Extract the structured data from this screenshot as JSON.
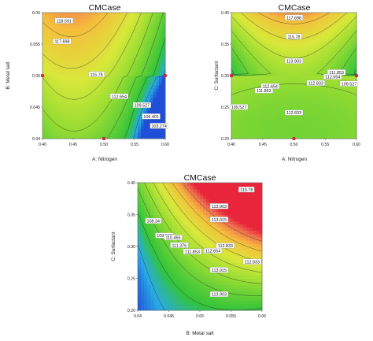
{
  "chart_data": [
    {
      "type": "contour",
      "title": "CMCase",
      "xlabel": "A: Nitrogen",
      "ylabel": "B: Metal salt",
      "xlim": [
        0.4,
        0.6
      ],
      "ylim": [
        0.04,
        0.06
      ],
      "x_ticks": [
        "0.40",
        "0.45",
        "0.50",
        "0.55",
        "0.60"
      ],
      "y_ticks": [
        "0.04",
        "0.045",
        "0.05",
        "0.055",
        "0.06"
      ],
      "design_points": [
        [
          0.4,
          0.05
        ],
        [
          0.5,
          0.04
        ],
        [
          0.6,
          0.05
        ]
      ],
      "contour_labels": [
        {
          "text": "118.591",
          "x": 0.435,
          "y": 0.0587
        },
        {
          "text": "117.698",
          "x": 0.432,
          "y": 0.0554
        },
        {
          "text": "115.78",
          "x": 0.488,
          "y": 0.0502
        },
        {
          "text": "112.654",
          "x": 0.525,
          "y": 0.0467
        },
        {
          "text": "109.527",
          "x": 0.562,
          "y": 0.0453
        },
        {
          "text": "106.401",
          "x": 0.577,
          "y": 0.0435
        },
        {
          "text": "103.274",
          "x": 0.59,
          "y": 0.042
        }
      ],
      "grid": false
    },
    {
      "type": "contour",
      "title": "CMCase",
      "xlabel": "A: Nitrogen",
      "ylabel": "C: Surfactant",
      "xlim": [
        0.4,
        0.6
      ],
      "ylim": [
        0.2,
        0.4
      ],
      "x_ticks": [
        "0.40",
        "0.45",
        "0.50",
        "0.55",
        "0.60"
      ],
      "y_ticks": [
        "0.20",
        "0.25",
        "0.30",
        "0.35",
        "0.40"
      ],
      "design_points": [
        [
          0.4,
          0.3
        ],
        [
          0.5,
          0.2
        ],
        [
          0.6,
          0.3
        ]
      ],
      "contour_labels": [
        {
          "text": "117.698",
          "x": 0.5,
          "y": 0.392
        },
        {
          "text": "115.78",
          "x": 0.5,
          "y": 0.362
        },
        {
          "text": "113.903",
          "x": 0.5,
          "y": 0.323
        },
        {
          "text": "111.853",
          "x": 0.568,
          "y": 0.305
        },
        {
          "text": "112.654",
          "x": 0.562,
          "y": 0.298
        },
        {
          "text": "112.833",
          "x": 0.535,
          "y": 0.288
        },
        {
          "text": "109.527",
          "x": 0.588,
          "y": 0.287
        },
        {
          "text": "112.654",
          "x": 0.462,
          "y": 0.283
        },
        {
          "text": "111.853",
          "x": 0.452,
          "y": 0.276
        },
        {
          "text": "109.527",
          "x": 0.412,
          "y": 0.25
        },
        {
          "text": "112.833",
          "x": 0.5,
          "y": 0.241
        }
      ],
      "grid": false
    },
    {
      "type": "contour",
      "title": "CMCase",
      "xlabel": "B: Metal salt",
      "ylabel": "C: Surfactant",
      "xlim": [
        0.04,
        0.06
      ],
      "ylim": [
        0.2,
        0.4
      ],
      "x_ticks": [
        "0.04",
        "0.045",
        "0.05",
        "0.055",
        "0.06"
      ],
      "y_ticks": [
        "0.20",
        "0.25",
        "0.30",
        "0.35",
        "0.40"
      ],
      "design_points": [],
      "contour_labels": [
        {
          "text": "115.78",
          "x": 0.0575,
          "y": 0.389
        },
        {
          "text": "113.903",
          "x": 0.0531,
          "y": 0.363
        },
        {
          "text": "113.015",
          "x": 0.0531,
          "y": 0.342
        },
        {
          "text": "108.34",
          "x": 0.0425,
          "y": 0.34
        },
        {
          "text": "109.527",
          "x": 0.0443,
          "y": 0.317
        },
        {
          "text": "110.465",
          "x": 0.0457,
          "y": 0.314
        },
        {
          "text": "111.376",
          "x": 0.0467,
          "y": 0.302
        },
        {
          "text": "112.833",
          "x": 0.0541,
          "y": 0.301
        },
        {
          "text": "111.853",
          "x": 0.0488,
          "y": 0.292
        },
        {
          "text": "112.654",
          "x": 0.0521,
          "y": 0.293
        },
        {
          "text": "112.833",
          "x": 0.0584,
          "y": 0.276
        },
        {
          "text": "113.015",
          "x": 0.0531,
          "y": 0.263
        },
        {
          "text": "113.903",
          "x": 0.0531,
          "y": 0.225
        }
      ],
      "grid": false
    }
  ],
  "colors": {
    "high": "#e8253a",
    "mid": "#d8e83a",
    "low": "#33c43a",
    "min": "#1f4fd6",
    "contour_line": "#2a2a2a",
    "design_point": "#e8253a"
  }
}
